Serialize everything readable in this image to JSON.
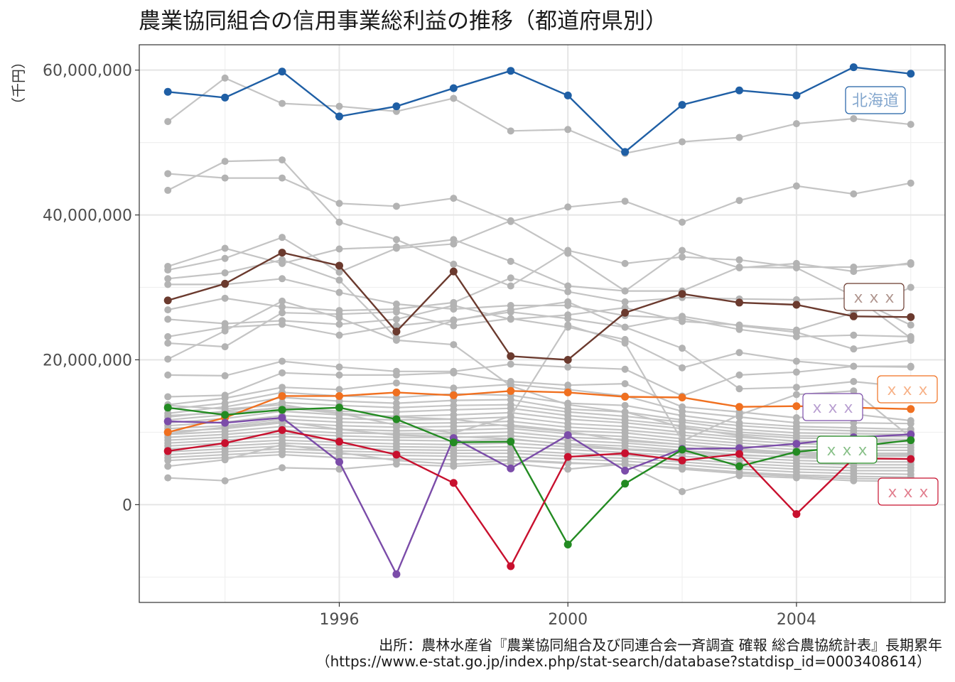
{
  "chart_data": {
    "type": "line",
    "title": "農業協同組合の信用事業総利益の推移（都道府県別）",
    "xlabel": "",
    "ylabel": "（千円）",
    "x": [
      1993,
      1994,
      1995,
      1996,
      1997,
      1998,
      1999,
      2000,
      2001,
      2002,
      2003,
      2004,
      2005,
      2006
    ],
    "xlim": [
      1992.5,
      2006.6
    ],
    "ylim": [
      -13500000,
      63500000
    ],
    "x_ticks": [
      1996,
      2000,
      2004
    ],
    "y_ticks": [
      0,
      20000000,
      40000000,
      60000000
    ],
    "y_tick_labels": [
      "0",
      "20,000,000",
      "40,000,000",
      "60,000,000"
    ],
    "grid": true,
    "highlight_series": [
      {
        "name": "北海道",
        "color": "#1f5fa5",
        "label_pos": "right",
        "values": [
          57000000,
          56200000,
          59800000,
          53600000,
          55000000,
          57500000,
          59900000,
          56500000,
          48700000,
          55200000,
          57200000,
          56500000,
          60400000,
          59500000
        ]
      },
      {
        "name": "ｘｘｘ",
        "color": "#6b3a2e",
        "label_pos": "right",
        "values": [
          28200000,
          30500000,
          34800000,
          33000000,
          23900000,
          32200000,
          20500000,
          20000000,
          26500000,
          29100000,
          27900000,
          27600000,
          26000000,
          25900000
        ]
      },
      {
        "name": "ｘｘｘ",
        "color": "#f07020",
        "label_pos": "right",
        "values": [
          10000000,
          12000000,
          15000000,
          15000000,
          15500000,
          15100000,
          15700000,
          15500000,
          14900000,
          14800000,
          13500000,
          13600000,
          13400000,
          13200000
        ]
      },
      {
        "name": "ｘｘｘ",
        "color": "#7b4ca9",
        "label_pos": "right",
        "values": [
          11500000,
          11300000,
          12000000,
          5900000,
          -9600000,
          9200000,
          5000000,
          9600000,
          4700000,
          7700000,
          7800000,
          8400000,
          9300000,
          9700000
        ]
      },
      {
        "name": "ｘｘｘ",
        "color": "#238b22",
        "label_pos": "right",
        "values": [
          13400000,
          12400000,
          13100000,
          13400000,
          11800000,
          8600000,
          8700000,
          -5500000,
          2900000,
          7600000,
          5300000,
          7300000,
          8000000,
          8900000
        ]
      },
      {
        "name": "ｘｘｘ",
        "color": "#c8102e",
        "label_pos": "right",
        "values": [
          7400000,
          8500000,
          10300000,
          8700000,
          6900000,
          3000000,
          -8500000,
          6600000,
          7100000,
          6100000,
          7000000,
          -1300000,
          6400000,
          6300000
        ]
      }
    ],
    "other_series": [
      [
        52900000,
        58900000,
        55400000,
        55000000,
        54300000,
        56100000,
        51600000,
        51800000,
        48500000,
        50100000,
        50700000,
        52600000,
        53300000,
        52500000
      ],
      [
        45700000,
        45100000,
        45100000,
        41600000,
        41200000,
        42300000,
        39100000,
        41100000,
        41900000,
        39000000,
        42000000,
        44000000,
        42900000,
        44400000
      ],
      [
        43400000,
        47400000,
        47600000,
        39000000,
        36600000,
        33200000,
        30200000,
        35100000,
        33300000,
        34200000,
        33800000,
        32800000,
        32800000,
        33200000
      ],
      [
        32900000,
        35400000,
        33300000,
        35300000,
        35600000,
        36600000,
        33600000,
        30200000,
        29500000,
        35100000,
        32700000,
        33300000,
        32200000,
        33400000
      ],
      [
        32400000,
        34000000,
        36900000,
        32100000,
        35400000,
        36000000,
        39200000,
        34700000,
        29500000,
        29500000,
        32800000,
        32700000,
        28800000,
        23000000
      ],
      [
        31200000,
        32000000,
        33800000,
        31000000,
        23000000,
        25400000,
        26900000,
        28000000,
        24500000,
        26000000,
        24700000,
        23800000,
        21500000,
        22700000
      ],
      [
        30400000,
        30400000,
        31200000,
        29300000,
        27700000,
        27000000,
        27500000,
        27500000,
        26100000,
        25700000,
        24200000,
        23200000,
        23400000,
        23200000
      ],
      [
        26900000,
        28500000,
        27300000,
        26800000,
        27000000,
        27900000,
        31300000,
        29400000,
        28000000,
        28600000,
        28400000,
        28300000,
        28500000,
        24800000
      ],
      [
        25600000,
        25000000,
        25400000,
        24900000,
        25600000,
        27500000,
        25600000,
        26200000,
        27200000,
        25300000,
        24800000,
        24100000,
        26500000,
        30000000
      ],
      [
        23200000,
        24500000,
        24900000,
        23400000,
        24700000,
        25500000,
        26600000,
        25700000,
        24500000,
        21600000,
        16000000,
        16200000,
        17000000,
        16200000
      ],
      [
        22300000,
        21800000,
        26500000,
        26300000,
        26600000,
        24700000,
        25700000,
        24500000,
        22800000,
        18900000,
        21000000,
        19800000,
        19100000,
        19100000
      ],
      [
        20100000,
        24000000,
        28100000,
        25800000,
        22700000,
        22100000,
        16400000,
        13800000,
        12800000,
        10700000,
        9500000,
        8700000,
        8800000,
        9000000
      ],
      [
        17900000,
        17800000,
        19800000,
        19000000,
        18400000,
        18400000,
        19400000,
        19000000,
        18700000,
        15000000,
        17900000,
        18300000,
        19100000,
        19000000
      ],
      [
        14900000,
        15100000,
        18200000,
        17900000,
        17900000,
        18200000,
        17000000,
        16500000,
        16700000,
        13500000,
        12800000,
        12000000,
        12500000,
        11600000
      ],
      [
        13800000,
        14700000,
        16200000,
        15900000,
        16800000,
        16100000,
        16600000,
        15900000,
        15000000,
        12900000,
        12100000,
        11300000,
        11300000,
        11200000
      ],
      [
        13200000,
        14000000,
        15500000,
        15000000,
        14800000,
        15300000,
        15100000,
        14000000,
        13700000,
        12300000,
        11300000,
        10800000,
        10600000,
        10400000
      ],
      [
        12600000,
        13500000,
        14800000,
        14300000,
        14000000,
        14400000,
        14500000,
        13200000,
        12800000,
        11700000,
        10900000,
        10400000,
        10200000,
        10100000
      ],
      [
        12100000,
        12900000,
        14100000,
        13700000,
        13400000,
        13700000,
        13800000,
        12800000,
        12200000,
        11400000,
        10400000,
        9900000,
        9800000,
        9700000
      ],
      [
        11700000,
        12400000,
        13500000,
        12900000,
        12800000,
        13100000,
        13300000,
        12300000,
        11700000,
        10900000,
        10000000,
        9500000,
        9400000,
        9400000
      ],
      [
        11300000,
        11900000,
        12900000,
        12400000,
        12200000,
        12400000,
        12700000,
        11800000,
        11300000,
        10500000,
        9700000,
        9200000,
        9100000,
        9000000
      ],
      [
        10900000,
        11400000,
        12300000,
        11900000,
        11700000,
        11800000,
        12100000,
        11200000,
        10800000,
        10000000,
        9300000,
        8800000,
        8700000,
        8700000
      ],
      [
        10500000,
        10900000,
        11800000,
        11400000,
        11200000,
        11300000,
        11500000,
        10700000,
        10300000,
        9600000,
        8900000,
        8400000,
        8300000,
        8300000
      ],
      [
        10100000,
        10500000,
        11300000,
        10900000,
        10700000,
        10800000,
        11000000,
        10200000,
        9900000,
        9100000,
        8500000,
        8000000,
        7900000,
        7900000
      ],
      [
        9700000,
        10100000,
        10800000,
        10400000,
        10200000,
        10300000,
        10500000,
        9800000,
        9400000,
        8700000,
        8100000,
        7600000,
        7500000,
        7500000
      ],
      [
        9300000,
        9700000,
        10300000,
        9900000,
        9800000,
        9800000,
        10000000,
        9300000,
        9000000,
        8300000,
        7700000,
        7200000,
        7100000,
        7100000
      ],
      [
        8900000,
        9300000,
        9800000,
        9500000,
        9300000,
        9300000,
        9500000,
        8900000,
        8500000,
        7900000,
        7300000,
        6900000,
        6700000,
        6700000
      ],
      [
        8500000,
        8900000,
        9400000,
        9000000,
        8900000,
        8800000,
        9000000,
        8400000,
        8100000,
        7500000,
        6900000,
        6500000,
        6300000,
        6300000
      ],
      [
        8100000,
        8500000,
        8900000,
        8600000,
        8400000,
        8300000,
        8500000,
        8000000,
        7600000,
        7100000,
        6500000,
        6100000,
        5900000,
        5900000
      ],
      [
        7700000,
        8100000,
        8500000,
        8200000,
        8000000,
        7900000,
        8000000,
        7600000,
        7200000,
        6700000,
        6100000,
        5700000,
        5500000,
        5500000
      ],
      [
        7300000,
        7700000,
        8100000,
        7800000,
        7600000,
        7500000,
        7500000,
        7100000,
        6800000,
        6300000,
        5700000,
        5300000,
        5100000,
        5100000
      ],
      [
        6900000,
        7300000,
        7700000,
        7400000,
        7200000,
        7100000,
        7100000,
        6700000,
        6400000,
        5900000,
        5300000,
        4900000,
        4700000,
        4700000
      ],
      [
        6500000,
        6900000,
        7300000,
        7000000,
        6800000,
        6700000,
        6600000,
        6300000,
        6000000,
        5500000,
        4900000,
        4500000,
        4300000,
        4200000
      ],
      [
        6100000,
        6500000,
        6900000,
        6500000,
        6300000,
        6200000,
        6200000,
        5800000,
        5500000,
        5100000,
        4500000,
        4100000,
        3900000,
        3800000
      ],
      [
        5300000,
        6200000,
        8300000,
        7200000,
        6100000,
        5600000,
        6100000,
        5700000,
        5600000,
        4900000,
        4300000,
        3900000,
        3600000,
        3500000
      ],
      [
        3700000,
        3300000,
        5100000,
        4900000,
        5600000,
        5300000,
        5700000,
        4900000,
        5600000,
        1800000,
        4000000,
        3700000,
        3300000,
        3200000
      ],
      [
        9800000,
        10700000,
        11500000,
        10400000,
        9600000,
        9400000,
        9100000,
        8300000,
        7700000,
        7300000,
        6800000,
        6600000,
        6800000,
        6900000
      ],
      [
        12300000,
        12700000,
        13400000,
        12600000,
        12100000,
        11800000,
        10800000,
        10100000,
        8800000,
        8300000,
        7500000,
        7000000,
        6900000,
        6800000
      ],
      [
        13700000,
        13200000,
        13800000,
        12600000,
        11000000,
        9900000,
        12200000,
        24800000,
        22300000,
        8800000,
        12400000,
        15200000,
        15700000,
        9300000
      ]
    ]
  },
  "caption": {
    "line1": "出所：農林水産省『農業協同組合及び同連合会一斉調査 確報 総合農協統計表』長期累年",
    "line2": "（https://www.e-stat.go.jp/index.php/stat-search/database?statdisp_id=0003408614）"
  },
  "colors": {
    "other_line": "#c4c4c4",
    "other_point": "#b3b3b3",
    "grid_major": "#e5e5e5",
    "grid_minor": "#f0f0f0",
    "frame": "#333333"
  }
}
